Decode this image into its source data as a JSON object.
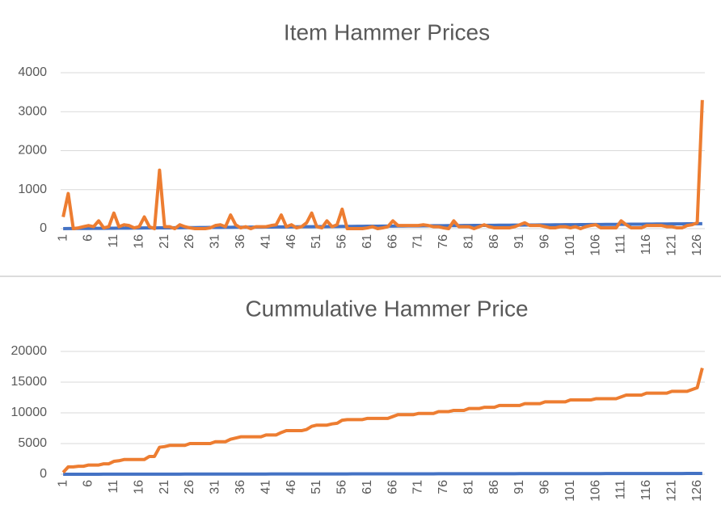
{
  "chart_data": [
    {
      "type": "line",
      "title": "Item Hammer Prices",
      "categories": [
        "1",
        null,
        null,
        null,
        null,
        "6",
        null,
        null,
        null,
        null,
        "11",
        null,
        null,
        null,
        null,
        "16",
        null,
        null,
        null,
        null,
        "21",
        null,
        null,
        null,
        null,
        "26",
        null,
        null,
        null,
        null,
        "31",
        null,
        null,
        null,
        null,
        "36",
        null,
        null,
        null,
        null,
        "41",
        null,
        null,
        null,
        null,
        "46",
        null,
        null,
        null,
        null,
        "51",
        null,
        null,
        null,
        null,
        "56",
        null,
        null,
        null,
        null,
        "61",
        null,
        null,
        null,
        null,
        "66",
        null,
        null,
        null,
        null,
        "71",
        null,
        null,
        null,
        null,
        "76",
        null,
        null,
        null,
        null,
        "81",
        null,
        null,
        null,
        null,
        "86",
        null,
        null,
        null,
        null,
        "91",
        null,
        null,
        null,
        null,
        "96",
        null,
        null,
        null,
        null,
        "101",
        null,
        null,
        null,
        null,
        "106",
        null,
        null,
        null,
        null,
        "111",
        null,
        null,
        null,
        null,
        "116",
        null,
        null,
        null,
        null,
        "121",
        null,
        null,
        null,
        null,
        "126",
        null
      ],
      "series": [
        {
          "color": "#4472c4",
          "values": [
            1,
            2,
            3,
            4,
            5,
            6,
            7,
            8,
            9,
            10,
            11,
            12,
            13,
            14,
            15,
            16,
            17,
            18,
            19,
            20,
            21,
            22,
            23,
            24,
            25,
            26,
            27,
            28,
            29,
            30,
            31,
            32,
            33,
            34,
            35,
            36,
            37,
            38,
            39,
            40,
            41,
            42,
            43,
            44,
            45,
            46,
            47,
            48,
            49,
            50,
            51,
            52,
            53,
            54,
            55,
            56,
            57,
            58,
            59,
            60,
            61,
            62,
            63,
            64,
            65,
            66,
            67,
            68,
            69,
            70,
            71,
            72,
            73,
            74,
            75,
            76,
            77,
            78,
            79,
            80,
            81,
            82,
            83,
            84,
            85,
            86,
            87,
            88,
            89,
            90,
            91,
            92,
            93,
            94,
            95,
            96,
            97,
            98,
            99,
            100,
            101,
            102,
            103,
            104,
            105,
            106,
            107,
            108,
            109,
            110,
            111,
            112,
            113,
            114,
            115,
            116,
            117,
            118,
            119,
            120,
            121,
            122,
            123,
            124,
            125,
            126,
            127
          ]
        },
        {
          "color": "#ed7d31",
          "values": [
            300,
            900,
            0,
            20,
            50,
            80,
            50,
            200,
            20,
            50,
            400,
            50,
            100,
            80,
            20,
            50,
            300,
            50,
            0,
            1500,
            50,
            50,
            0,
            100,
            50,
            20,
            0,
            0,
            0,
            20,
            80,
            100,
            50,
            350,
            100,
            20,
            50,
            0,
            50,
            50,
            50,
            80,
            100,
            350,
            50,
            100,
            20,
            50,
            150,
            400,
            50,
            20,
            200,
            50,
            100,
            500,
            0,
            0,
            0,
            0,
            20,
            50,
            0,
            20,
            50,
            200,
            80,
            80,
            80,
            80,
            80,
            100,
            80,
            50,
            50,
            20,
            0,
            200,
            50,
            50,
            50,
            0,
            50,
            100,
            50,
            20,
            20,
            20,
            20,
            50,
            100,
            150,
            80,
            80,
            80,
            50,
            20,
            20,
            50,
            50,
            20,
            50,
            0,
            50,
            80,
            100,
            20,
            20,
            20,
            20,
            200,
            100,
            20,
            20,
            20,
            80,
            80,
            80,
            80,
            50,
            50,
            20,
            20,
            80,
            100,
            150,
            3300
          ]
        }
      ],
      "ylim": [
        0,
        4000
      ],
      "yticks": [
        0,
        1000,
        2000,
        3000,
        4000
      ],
      "grid": true
    },
    {
      "type": "line",
      "title": "Cummulative Hammer Price",
      "categories": [
        "1",
        null,
        null,
        null,
        null,
        "6",
        null,
        null,
        null,
        null,
        "11",
        null,
        null,
        null,
        null,
        "16",
        null,
        null,
        null,
        null,
        "21",
        null,
        null,
        null,
        null,
        "26",
        null,
        null,
        null,
        null,
        "31",
        null,
        null,
        null,
        null,
        "36",
        null,
        null,
        null,
        null,
        "41",
        null,
        null,
        null,
        null,
        "46",
        null,
        null,
        null,
        null,
        "51",
        null,
        null,
        null,
        null,
        "56",
        null,
        null,
        null,
        null,
        "61",
        null,
        null,
        null,
        null,
        "66",
        null,
        null,
        null,
        null,
        "71",
        null,
        null,
        null,
        null,
        "76",
        null,
        null,
        null,
        null,
        "81",
        null,
        null,
        null,
        null,
        "86",
        null,
        null,
        null,
        null,
        "91",
        null,
        null,
        null,
        null,
        "96",
        null,
        null,
        null,
        null,
        "101",
        null,
        null,
        null,
        null,
        "106",
        null,
        null,
        null,
        null,
        "111",
        null,
        null,
        null,
        null,
        "116",
        null,
        null,
        null,
        null,
        "121",
        null,
        null,
        null,
        null,
        "126",
        null
      ],
      "series": [
        {
          "color": "#4472c4",
          "values": [
            1,
            2,
            3,
            4,
            5,
            6,
            7,
            8,
            9,
            10,
            11,
            12,
            13,
            14,
            15,
            16,
            17,
            18,
            19,
            20,
            21,
            22,
            23,
            24,
            25,
            26,
            27,
            28,
            29,
            30,
            31,
            32,
            33,
            34,
            35,
            36,
            37,
            38,
            39,
            40,
            41,
            42,
            43,
            44,
            45,
            46,
            47,
            48,
            49,
            50,
            51,
            52,
            53,
            54,
            55,
            56,
            57,
            58,
            59,
            60,
            61,
            62,
            63,
            64,
            65,
            66,
            67,
            68,
            69,
            70,
            71,
            72,
            73,
            74,
            75,
            76,
            77,
            78,
            79,
            80,
            81,
            82,
            83,
            84,
            85,
            86,
            87,
            88,
            89,
            90,
            91,
            92,
            93,
            94,
            95,
            96,
            97,
            98,
            99,
            100,
            101,
            102,
            103,
            104,
            105,
            106,
            107,
            108,
            109,
            110,
            111,
            112,
            113,
            114,
            115,
            116,
            117,
            118,
            119,
            120,
            121,
            122,
            123,
            124,
            125,
            126,
            127
          ]
        },
        {
          "color": "#ed7d31",
          "values": [
            300,
            1200,
            1200,
            1300,
            1300,
            1500,
            1500,
            1500,
            1700,
            1700,
            2100,
            2200,
            2400,
            2400,
            2400,
            2400,
            2400,
            2900,
            2900,
            4400,
            4500,
            4700,
            4700,
            4700,
            4700,
            5000,
            5000,
            5000,
            5000,
            5000,
            5300,
            5300,
            5300,
            5700,
            5900,
            6100,
            6100,
            6100,
            6100,
            6100,
            6400,
            6400,
            6400,
            6800,
            7100,
            7100,
            7100,
            7100,
            7300,
            7800,
            8000,
            8000,
            8000,
            8200,
            8300,
            8800,
            8900,
            8900,
            8900,
            8900,
            9100,
            9100,
            9100,
            9100,
            9100,
            9400,
            9700,
            9700,
            9700,
            9700,
            9900,
            9900,
            9900,
            9900,
            10200,
            10200,
            10200,
            10400,
            10400,
            10400,
            10700,
            10700,
            10700,
            10900,
            10900,
            10900,
            11200,
            11200,
            11200,
            11200,
            11200,
            11500,
            11500,
            11500,
            11500,
            11800,
            11800,
            11800,
            11800,
            11800,
            12100,
            12100,
            12100,
            12100,
            12100,
            12300,
            12300,
            12300,
            12300,
            12300,
            12600,
            12900,
            12900,
            12900,
            12900,
            13200,
            13200,
            13200,
            13200,
            13200,
            13500,
            13500,
            13500,
            13500,
            13800,
            14100,
            17300
          ]
        }
      ],
      "ylim": [
        0,
        20000
      ],
      "yticks": [
        0,
        5000,
        10000,
        15000,
        20000
      ],
      "grid": true
    }
  ]
}
